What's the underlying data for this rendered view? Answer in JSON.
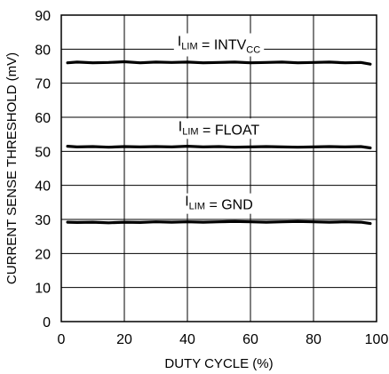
{
  "chart_data": {
    "type": "line",
    "xlabel": "DUTY CYCLE (%)",
    "ylabel": "CURRENT SENSE THRESHOLD (mV)",
    "xlim": [
      0,
      100
    ],
    "ylim": [
      0,
      90
    ],
    "x_ticks": [
      "0",
      "20",
      "40",
      "60",
      "80",
      "100"
    ],
    "y_ticks": [
      "0",
      "10",
      "20",
      "30",
      "40",
      "50",
      "60",
      "70",
      "80",
      "90"
    ],
    "grid": true,
    "series": [
      {
        "name": "ILIM = INTVCC",
        "label_main": "I",
        "label_sub": "LIM",
        "label_rest": " = INTV",
        "label_sub2": "CC",
        "x": [
          2,
          5,
          10,
          15,
          20,
          25,
          30,
          35,
          40,
          45,
          50,
          55,
          60,
          65,
          70,
          75,
          80,
          85,
          90,
          95,
          98
        ],
        "y": [
          76,
          76.2,
          76,
          76.1,
          76.3,
          76,
          76.2,
          76.1,
          76.2,
          76,
          76.1,
          76.2,
          76,
          76.1,
          76.2,
          76,
          76.1,
          76.2,
          76,
          76.1,
          75.6
        ]
      },
      {
        "name": "ILIM = FLOAT",
        "label_main": "I",
        "label_sub": "LIM",
        "label_rest": " = FLOAT",
        "label_sub2": "",
        "x": [
          2,
          5,
          10,
          15,
          20,
          25,
          30,
          35,
          40,
          45,
          50,
          55,
          60,
          65,
          70,
          75,
          80,
          85,
          90,
          95,
          98
        ],
        "y": [
          51.5,
          51.3,
          51.4,
          51.2,
          51.4,
          51.3,
          51.4,
          51.3,
          51.5,
          51.3,
          51.4,
          51.2,
          51.3,
          51.4,
          51.3,
          51.2,
          51.3,
          51.4,
          51.3,
          51.4,
          51.0
        ]
      },
      {
        "name": "ILIM = GND",
        "label_main": "I",
        "label_sub": "LIM",
        "label_rest": " = GND",
        "label_sub2": "",
        "x": [
          2,
          5,
          10,
          15,
          20,
          25,
          30,
          35,
          40,
          45,
          50,
          55,
          60,
          65,
          70,
          75,
          80,
          85,
          90,
          95,
          98
        ],
        "y": [
          29.2,
          29.1,
          29.2,
          29.0,
          29.2,
          29.1,
          29.3,
          29.2,
          29.3,
          29.2,
          29.3,
          29.4,
          29.3,
          29.2,
          29.3,
          29.4,
          29.3,
          29.2,
          29.3,
          29.2,
          28.8
        ]
      }
    ]
  }
}
